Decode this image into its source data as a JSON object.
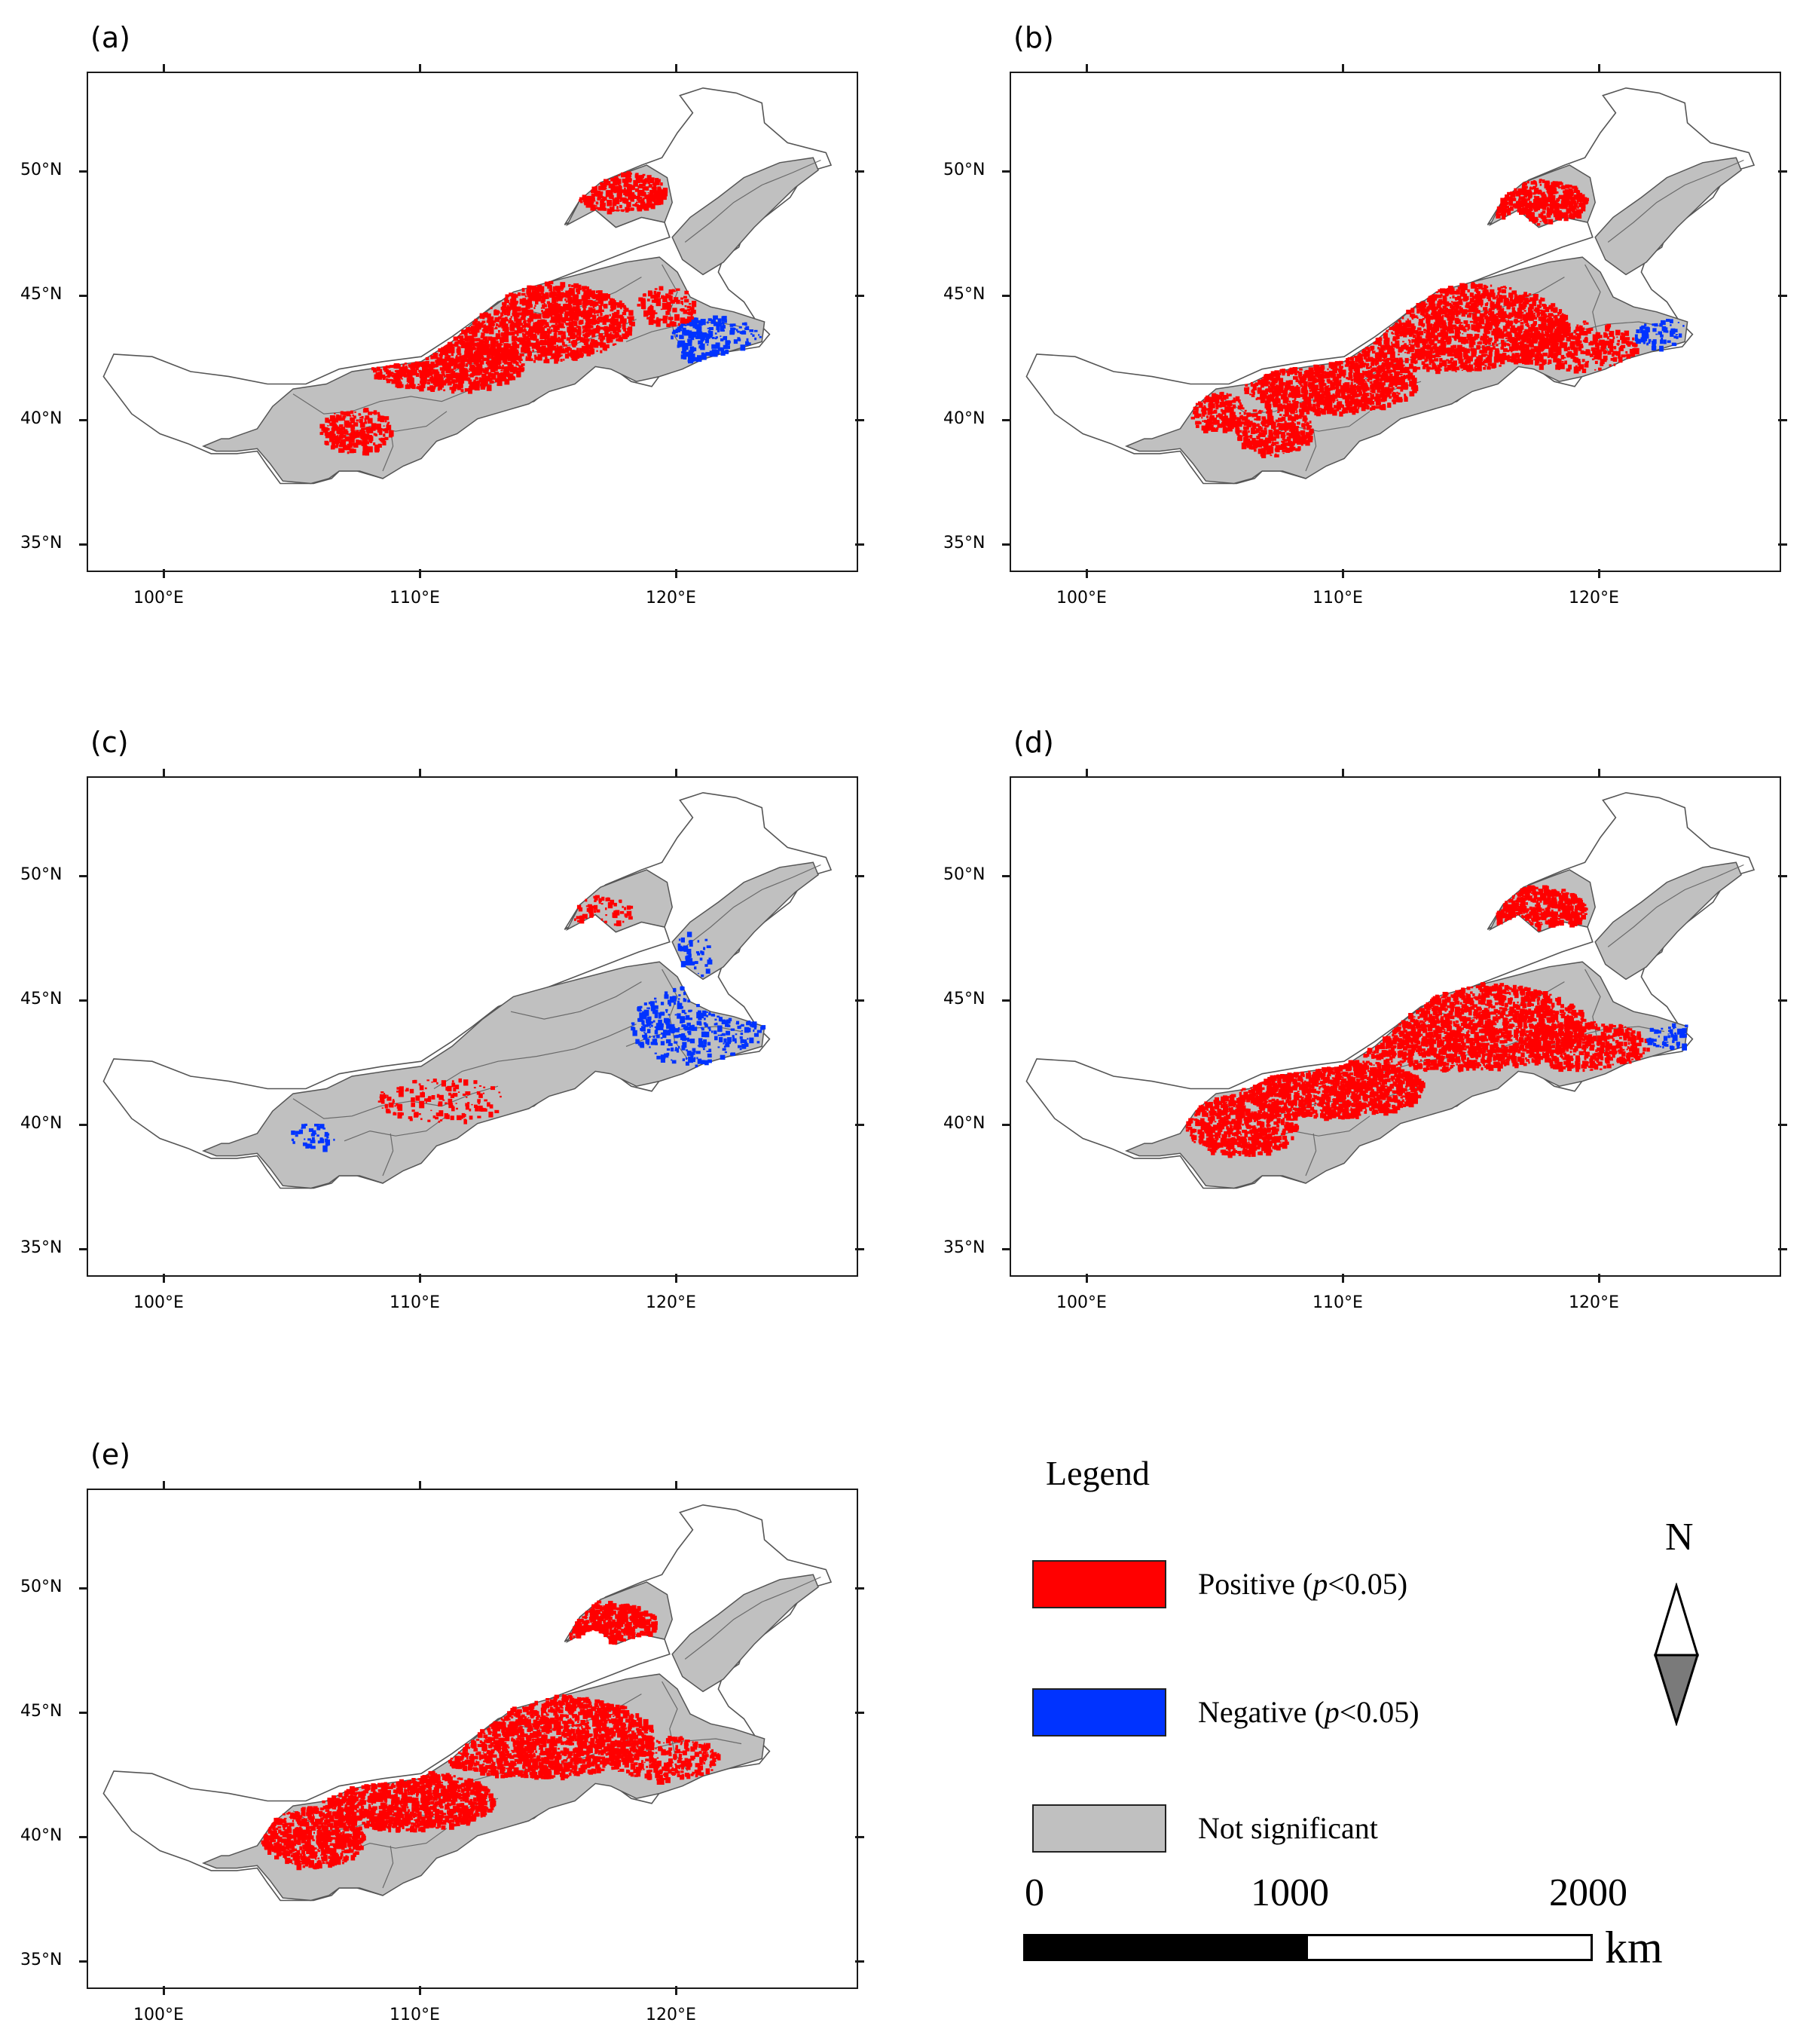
{
  "colors": {
    "positive": "#ff0000",
    "negative": "#0033ff",
    "not_significant": "#c0c0c0",
    "region_outline": "#555555",
    "frame": "#1a1a1a"
  },
  "axis": {
    "lat_labels": [
      "50°N",
      "45°N",
      "40°N",
      "35°N"
    ],
    "lon_labels": [
      "100°E",
      "110°E",
      "120°E"
    ]
  },
  "panels": [
    {
      "label": "(a)",
      "pattern": "a"
    },
    {
      "label": "(b)",
      "pattern": "b"
    },
    {
      "label": "(c)",
      "pattern": "c"
    },
    {
      "label": "(d)",
      "pattern": "d"
    },
    {
      "label": "(e)",
      "pattern": "e"
    }
  ],
  "legend": {
    "title": "Legend",
    "items": [
      {
        "key": "positive",
        "label_pre": "Positive (",
        "label_italic": "p",
        "label_post": "<0.05)"
      },
      {
        "key": "negative",
        "label_pre": "Negative (",
        "label_italic": "p",
        "label_post": "<0.05)"
      },
      {
        "key": "not_significant",
        "label_pre": "Not significant",
        "label_italic": "",
        "label_post": ""
      }
    ]
  },
  "scale_bar": {
    "ticks": [
      "0",
      "1000",
      "2000"
    ],
    "unit": "km"
  },
  "north_arrow": {
    "label": "N",
    "icon": "north-arrow-icon"
  }
}
